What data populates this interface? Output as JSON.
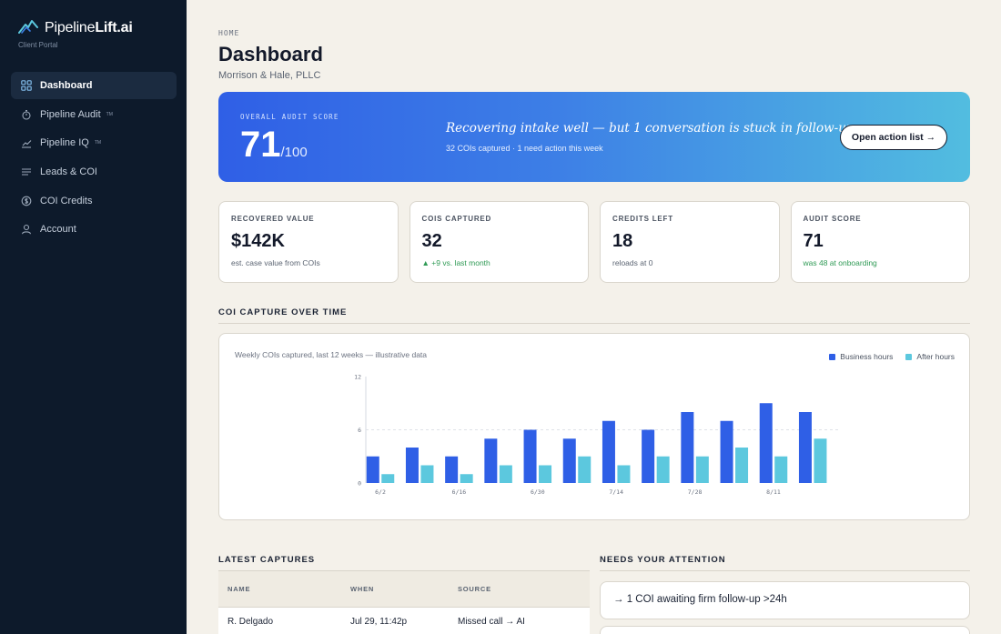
{
  "brand": {
    "name_light": "Pipeline",
    "name_bold": "Lift.ai",
    "subtitle": "Client Portal"
  },
  "nav": [
    {
      "label": "Dashboard",
      "icon": "grid-icon",
      "active": true,
      "tm": ""
    },
    {
      "label": "Pipeline Audit",
      "icon": "stopwatch-icon",
      "active": false,
      "tm": "TM"
    },
    {
      "label": "Pipeline IQ",
      "icon": "trend-chart-icon",
      "active": false,
      "tm": "TM"
    },
    {
      "label": "Leads & COI",
      "icon": "list-icon",
      "active": false,
      "tm": ""
    },
    {
      "label": "COI Credits",
      "icon": "coin-icon",
      "active": false,
      "tm": ""
    },
    {
      "label": "Account",
      "icon": "user-icon",
      "active": false,
      "tm": ""
    }
  ],
  "header": {
    "breadcrumb": "HOME",
    "title": "Dashboard",
    "subtitle": "Morrison & Hale, PLLC"
  },
  "hero": {
    "label": "OVERALL AUDIT SCORE",
    "score": "71",
    "denominator": "/100",
    "quote": "Recovering intake well — but 1 conversation is stuck in follow-up.",
    "note": "32 COIs captured · 1 need action this week",
    "button": "Open action list →"
  },
  "stats": [
    {
      "label": "RECOVERED VALUE",
      "value": "$142K",
      "note": "est. case value from COIs",
      "good": false
    },
    {
      "label": "COIS CAPTURED",
      "value": "32",
      "note": "▲ +9 vs. last month",
      "good": true
    },
    {
      "label": "CREDITS LEFT",
      "value": "18",
      "note": "reloads at 0",
      "good": false
    },
    {
      "label": "AUDIT SCORE",
      "value": "71",
      "note": "was 48 at onboarding",
      "good": true
    }
  ],
  "chart_section": {
    "title": "COI CAPTURE OVER TIME",
    "caption": "Weekly COIs captured, last 12 weeks — illustrative data"
  },
  "colors": {
    "business": "#2f5fe6",
    "after": "#5cc8de",
    "accent": "#2f5fe6",
    "good": "#2f9a55"
  },
  "chart_data": {
    "type": "bar",
    "categories": [
      "6/2",
      "6/9",
      "6/16",
      "6/23",
      "6/30",
      "7/7",
      "7/14",
      "7/21",
      "7/28",
      "8/4",
      "8/11",
      "8/18"
    ],
    "tick_labels": [
      "6/2",
      "",
      "6/16",
      "",
      "6/30",
      "",
      "7/14",
      "",
      "7/28",
      "",
      "8/11",
      ""
    ],
    "series": [
      {
        "name": "Business hours",
        "values": [
          3,
          4,
          3,
          5,
          6,
          5,
          7,
          6,
          8,
          7,
          9,
          8
        ]
      },
      {
        "name": "After hours",
        "values": [
          1,
          2,
          1,
          2,
          2,
          3,
          2,
          3,
          3,
          4,
          3,
          5
        ]
      }
    ],
    "ylim": [
      0,
      12
    ],
    "yticks": [
      0,
      6,
      12
    ],
    "grid": true,
    "legend": "top-right",
    "title": "Weekly COIs captured, last 12 weeks — illustrative data"
  },
  "captures": {
    "title": "LATEST CAPTURES",
    "columns": [
      "NAME",
      "WHEN",
      "SOURCE"
    ],
    "rows": [
      {
        "name": "R. Delgado",
        "when": "Jul 29, 11:42p",
        "source": "Missed call → AI"
      }
    ]
  },
  "attention": {
    "title": "NEEDS YOUR ATTENTION",
    "items": [
      "→ 1 COI awaiting firm follow-up >24h"
    ]
  }
}
